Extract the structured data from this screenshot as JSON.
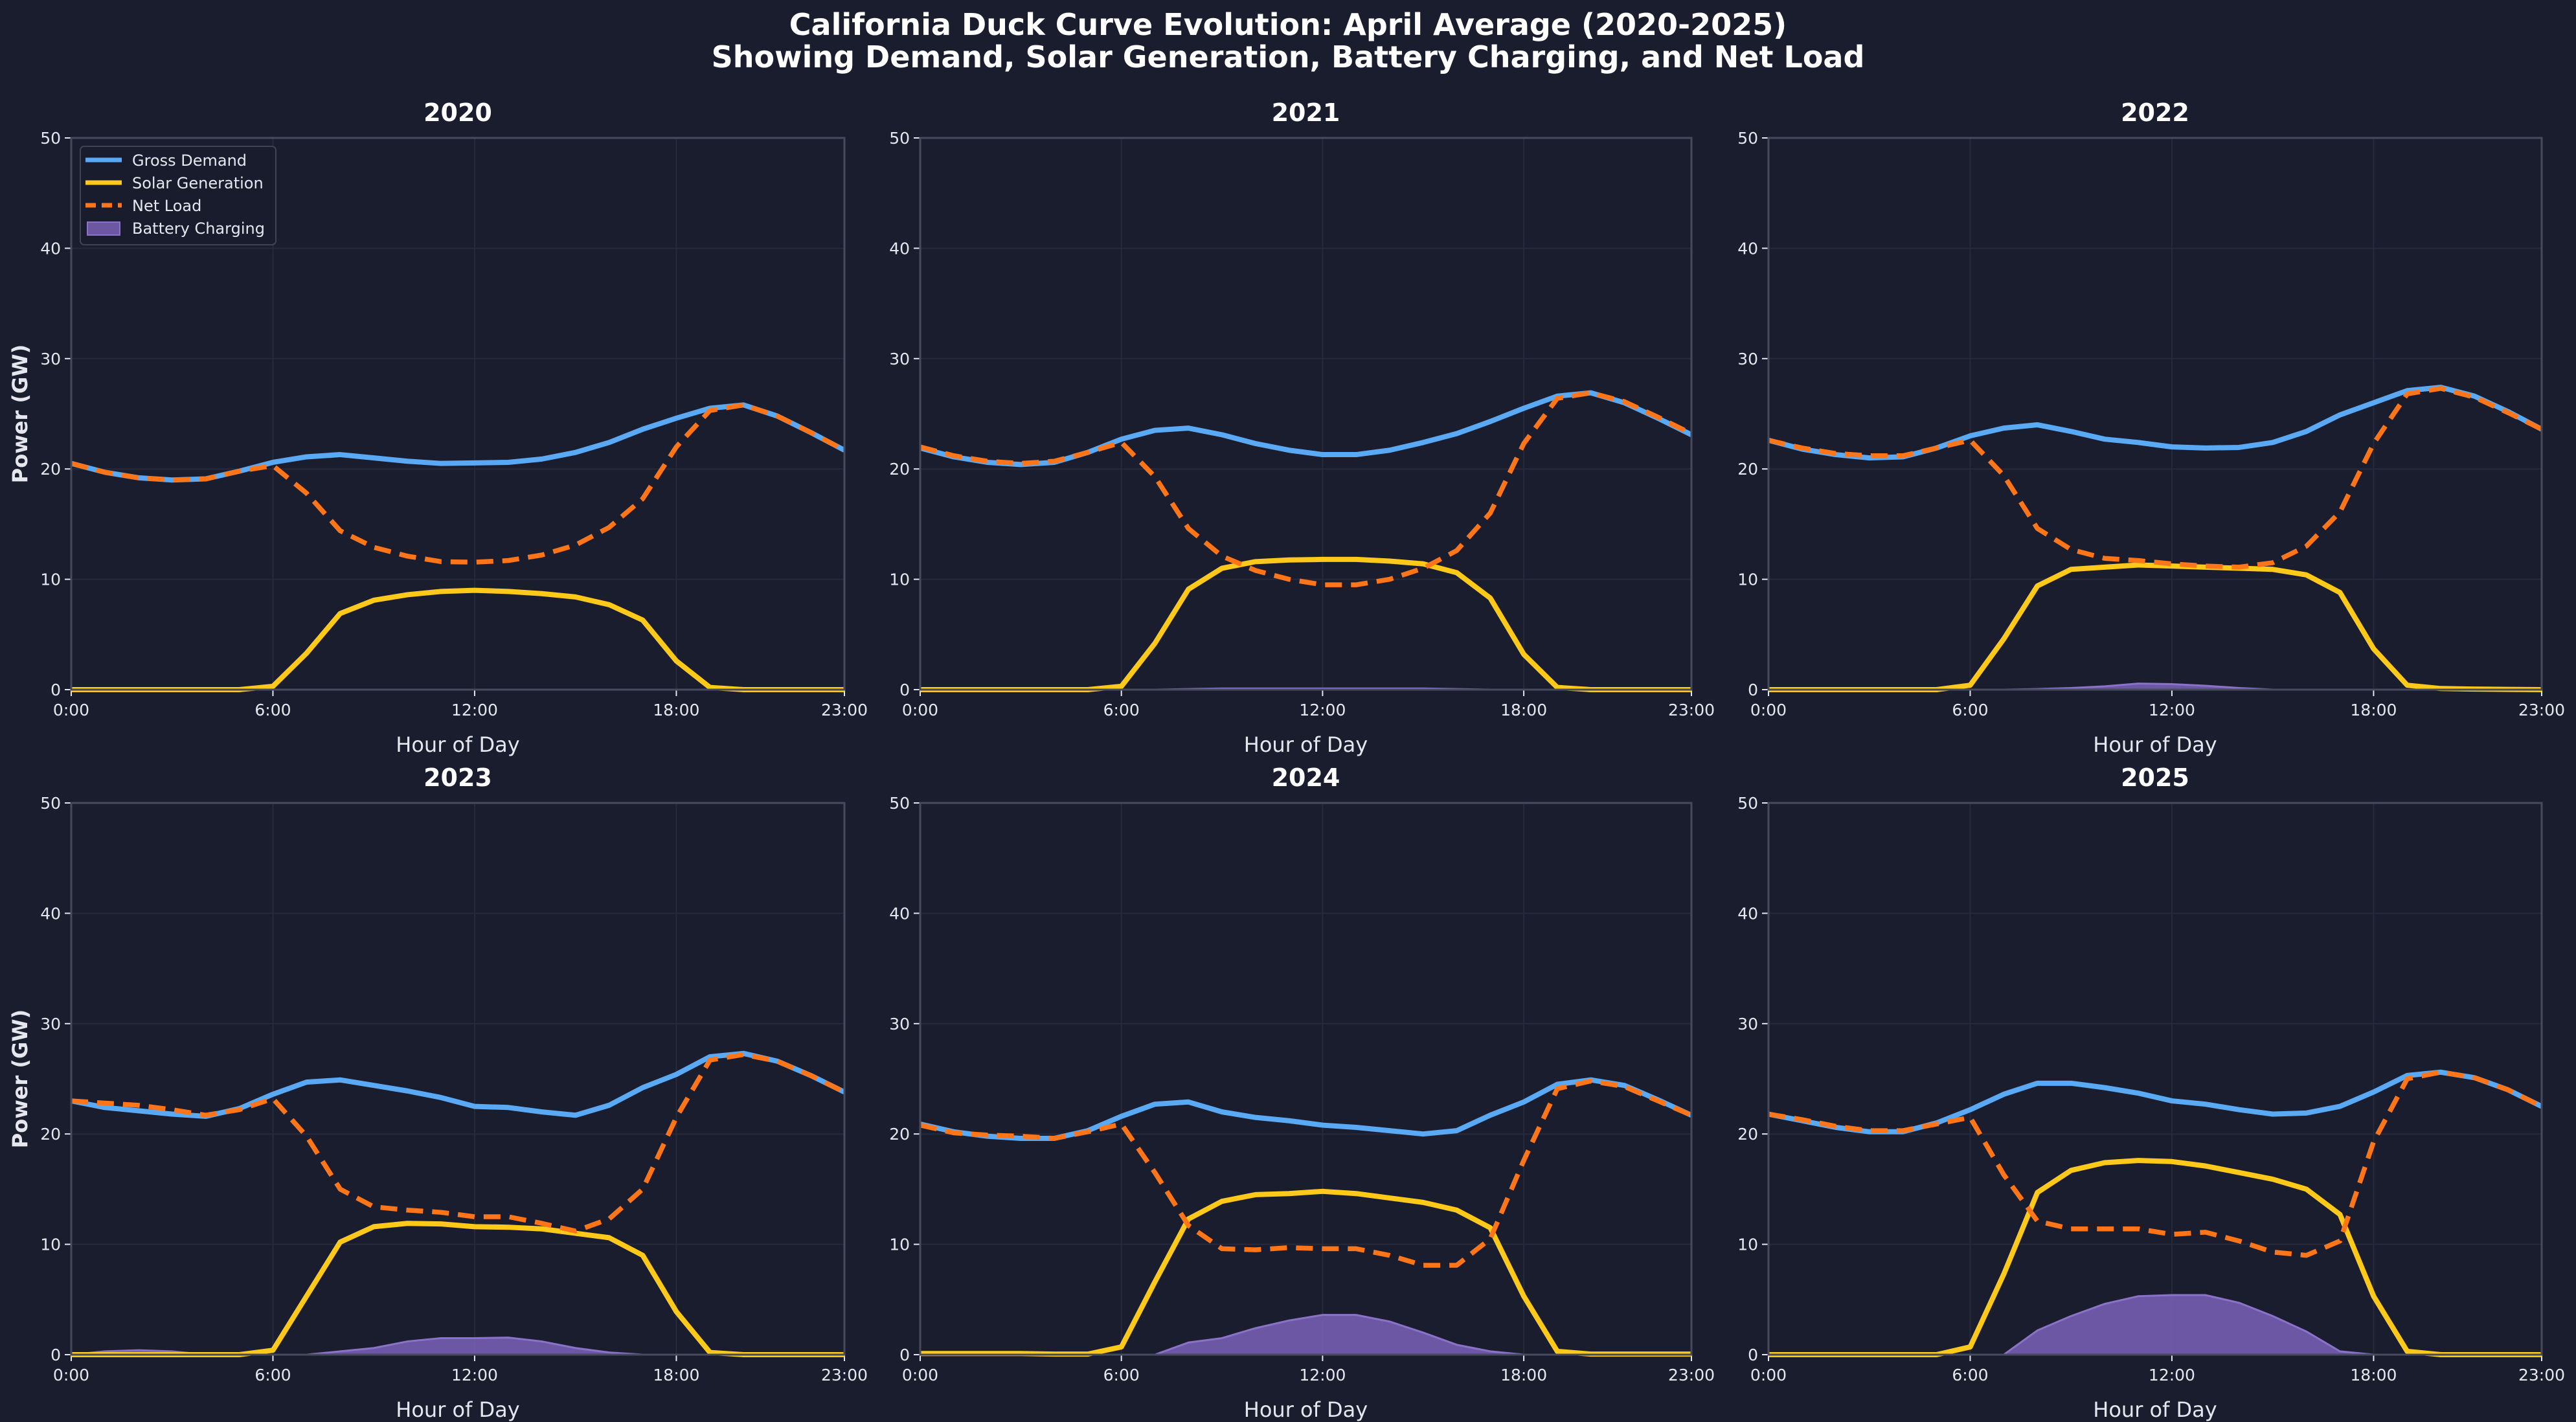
{
  "figure": {
    "title": "California Duck Curve Evolution: April Average (2020-2025)",
    "subtitle": "Showing Demand, Solar Generation, Battery Charging, and Net Load",
    "background": "#1a1d2e",
    "legend": {
      "placement": "upper-left of first panel",
      "entries": [
        "Gross Demand",
        "Solar Generation",
        "Net Load",
        "Battery Charging"
      ]
    },
    "colors": {
      "Gross Demand": "#5aa9f5",
      "Solar Generation": "#ffc91a",
      "Net Load": "#ff7518",
      "Battery Charging": "#7b62b8"
    }
  },
  "chart_data": [
    {
      "type": "line",
      "title": "2020",
      "xlabel": "Hour of Day",
      "ylabel": "Power (GW)",
      "xlim": [
        0,
        23
      ],
      "ylim": [
        0,
        50
      ],
      "grid": true,
      "xticks": [
        0,
        6,
        12,
        18,
        23
      ],
      "xtick_labels": [
        "0:00",
        "6:00",
        "12:00",
        "18:00",
        "23:00"
      ],
      "yticks": [
        0,
        10,
        20,
        30,
        40,
        50
      ],
      "x": [
        0,
        1,
        2,
        3,
        4,
        5,
        6,
        7,
        8,
        9,
        10,
        11,
        12,
        13,
        14,
        15,
        16,
        17,
        18,
        19,
        20,
        21,
        22,
        23
      ],
      "series": [
        {
          "name": "Gross Demand",
          "style": "solid",
          "values": [
            20.5,
            19.7,
            19.2,
            19.0,
            19.1,
            19.8,
            20.6,
            21.1,
            21.3,
            21.0,
            20.7,
            20.5,
            20.55,
            20.6,
            20.9,
            21.5,
            22.4,
            23.6,
            24.6,
            25.5,
            25.8,
            24.8,
            23.3,
            21.7
          ]
        },
        {
          "name": "Solar Generation",
          "style": "solid",
          "values": [
            0,
            0,
            0,
            0,
            0,
            0,
            0.3,
            3.3,
            6.9,
            8.1,
            8.6,
            8.9,
            9.0,
            8.9,
            8.7,
            8.4,
            7.7,
            6.3,
            2.6,
            0.2,
            0,
            0,
            0,
            0
          ]
        },
        {
          "name": "Net Load",
          "style": "dashed",
          "values": [
            20.5,
            19.7,
            19.2,
            19.0,
            19.1,
            19.8,
            20.3,
            17.8,
            14.4,
            12.9,
            12.1,
            11.6,
            11.55,
            11.7,
            12.2,
            13.1,
            14.7,
            17.3,
            22.0,
            25.3,
            25.8,
            24.8,
            23.3,
            21.7
          ]
        },
        {
          "name": "Battery Charging",
          "style": "area",
          "values": [
            0,
            0,
            0,
            0,
            0,
            0,
            0,
            0,
            0,
            0,
            0,
            0,
            0,
            0,
            0,
            0,
            0,
            0,
            0,
            0,
            0,
            0,
            0,
            0
          ]
        }
      ]
    },
    {
      "type": "line",
      "title": "2021",
      "xlabel": "Hour of Day",
      "ylabel": "",
      "xlim": [
        0,
        23
      ],
      "ylim": [
        0,
        50
      ],
      "grid": true,
      "xticks": [
        0,
        6,
        12,
        18,
        23
      ],
      "xtick_labels": [
        "0:00",
        "6:00",
        "12:00",
        "18:00",
        "23:00"
      ],
      "yticks": [
        0,
        10,
        20,
        30,
        40,
        50
      ],
      "x": [
        0,
        1,
        2,
        3,
        4,
        5,
        6,
        7,
        8,
        9,
        10,
        11,
        12,
        13,
        14,
        15,
        16,
        17,
        18,
        19,
        20,
        21,
        22,
        23
      ],
      "series": [
        {
          "name": "Gross Demand",
          "style": "solid",
          "values": [
            21.9,
            21.1,
            20.6,
            20.4,
            20.6,
            21.5,
            22.7,
            23.5,
            23.7,
            23.1,
            22.3,
            21.7,
            21.3,
            21.3,
            21.7,
            22.4,
            23.2,
            24.3,
            25.5,
            26.6,
            26.9,
            26.0,
            24.6,
            23.1
          ]
        },
        {
          "name": "Solar Generation",
          "style": "solid",
          "values": [
            0,
            0,
            0,
            0,
            0,
            0,
            0.3,
            4.2,
            9.1,
            11.0,
            11.6,
            11.75,
            11.8,
            11.8,
            11.65,
            11.4,
            10.6,
            8.3,
            3.2,
            0.2,
            0,
            0,
            0,
            0
          ]
        },
        {
          "name": "Net Load",
          "style": "dashed",
          "values": [
            22.0,
            21.2,
            20.7,
            20.5,
            20.7,
            21.5,
            22.4,
            19.3,
            14.6,
            12.1,
            10.8,
            10.0,
            9.5,
            9.5,
            10.0,
            11.0,
            12.6,
            16.0,
            22.3,
            26.4,
            26.9,
            26.1,
            24.7,
            23.2
          ]
        },
        {
          "name": "Battery Charging",
          "style": "area",
          "values": [
            0,
            0,
            0,
            0,
            0,
            0,
            0,
            0,
            0.05,
            0.1,
            0.1,
            0.1,
            0.1,
            0.1,
            0.1,
            0.1,
            0.05,
            0,
            0,
            0,
            0,
            0,
            0,
            0
          ]
        }
      ]
    },
    {
      "type": "line",
      "title": "2022",
      "xlabel": "Hour of Day",
      "ylabel": "",
      "xlim": [
        0,
        23
      ],
      "ylim": [
        0,
        50
      ],
      "grid": true,
      "xticks": [
        0,
        6,
        12,
        18,
        23
      ],
      "xtick_labels": [
        "0:00",
        "6:00",
        "12:00",
        "18:00",
        "23:00"
      ],
      "yticks": [
        0,
        10,
        20,
        30,
        40,
        50
      ],
      "x": [
        0,
        1,
        2,
        3,
        4,
        5,
        6,
        7,
        8,
        9,
        10,
        11,
        12,
        13,
        14,
        15,
        16,
        17,
        18,
        19,
        20,
        21,
        22,
        23
      ],
      "series": [
        {
          "name": "Gross Demand",
          "style": "solid",
          "values": [
            22.6,
            21.8,
            21.3,
            21.0,
            21.1,
            21.9,
            23.0,
            23.7,
            24.0,
            23.4,
            22.7,
            22.4,
            22.0,
            21.9,
            21.95,
            22.4,
            23.4,
            24.9,
            26.0,
            27.1,
            27.4,
            26.6,
            25.2,
            23.6
          ]
        },
        {
          "name": "Solar Generation",
          "style": "solid",
          "values": [
            0,
            0,
            0,
            0,
            0,
            0,
            0.4,
            4.6,
            9.4,
            10.9,
            11.1,
            11.3,
            11.2,
            11.1,
            11.0,
            10.9,
            10.4,
            8.8,
            3.7,
            0.4,
            0.1,
            0.05,
            0.02,
            0
          ]
        },
        {
          "name": "Net Load",
          "style": "dashed",
          "values": [
            22.6,
            21.9,
            21.4,
            21.2,
            21.2,
            21.9,
            22.6,
            19.4,
            14.6,
            12.7,
            11.9,
            11.7,
            11.4,
            11.2,
            11.1,
            11.5,
            13.0,
            16.1,
            22.3,
            26.8,
            27.3,
            26.5,
            25.1,
            23.6
          ]
        },
        {
          "name": "Battery Charging",
          "style": "area",
          "values": [
            0,
            0,
            0,
            0,
            0,
            0,
            0,
            0,
            0.05,
            0.15,
            0.3,
            0.55,
            0.5,
            0.35,
            0.15,
            0,
            0,
            0,
            0,
            0,
            0,
            0,
            0,
            0
          ]
        }
      ]
    },
    {
      "type": "line",
      "title": "2023",
      "xlabel": "Hour of Day",
      "ylabel": "Power (GW)",
      "xlim": [
        0,
        23
      ],
      "ylim": [
        0,
        50
      ],
      "grid": true,
      "xticks": [
        0,
        6,
        12,
        18,
        23
      ],
      "xtick_labels": [
        "0:00",
        "6:00",
        "12:00",
        "18:00",
        "23:00"
      ],
      "yticks": [
        0,
        10,
        20,
        30,
        40,
        50
      ],
      "x": [
        0,
        1,
        2,
        3,
        4,
        5,
        6,
        7,
        8,
        9,
        10,
        11,
        12,
        13,
        14,
        15,
        16,
        17,
        18,
        19,
        20,
        21,
        22,
        23
      ],
      "series": [
        {
          "name": "Gross Demand",
          "style": "solid",
          "values": [
            23.0,
            22.4,
            22.1,
            21.8,
            21.6,
            22.3,
            23.6,
            24.7,
            24.9,
            24.4,
            23.9,
            23.3,
            22.5,
            22.4,
            22.0,
            21.7,
            22.6,
            24.2,
            25.4,
            27.0,
            27.3,
            26.6,
            25.3,
            23.8
          ]
        },
        {
          "name": "Solar Generation",
          "style": "solid",
          "values": [
            0,
            0,
            0,
            0,
            0,
            0,
            0.4,
            5.3,
            10.2,
            11.6,
            11.9,
            11.85,
            11.6,
            11.55,
            11.4,
            11.0,
            10.6,
            9.0,
            3.9,
            0.2,
            0,
            0,
            0,
            0
          ]
        },
        {
          "name": "Net Load",
          "style": "dashed",
          "values": [
            23.0,
            22.8,
            22.6,
            22.2,
            21.7,
            22.2,
            23.2,
            19.8,
            15.0,
            13.4,
            13.1,
            12.9,
            12.5,
            12.5,
            11.9,
            11.2,
            12.3,
            15.0,
            21.5,
            26.7,
            27.2,
            26.6,
            25.3,
            23.8
          ]
        },
        {
          "name": "Battery Charging",
          "style": "area",
          "values": [
            0,
            0.3,
            0.4,
            0.3,
            0,
            0,
            0,
            0,
            0.3,
            0.6,
            1.2,
            1.5,
            1.5,
            1.55,
            1.2,
            0.6,
            0.2,
            0,
            0,
            0,
            0,
            0,
            0,
            0
          ]
        }
      ]
    },
    {
      "type": "line",
      "title": "2024",
      "xlabel": "Hour of Day",
      "ylabel": "",
      "xlim": [
        0,
        23
      ],
      "ylim": [
        0,
        50
      ],
      "grid": true,
      "xticks": [
        0,
        6,
        12,
        18,
        23
      ],
      "xtick_labels": [
        "0:00",
        "6:00",
        "12:00",
        "18:00",
        "23:00"
      ],
      "yticks": [
        0,
        10,
        20,
        30,
        40,
        50
      ],
      "x": [
        0,
        1,
        2,
        3,
        4,
        5,
        6,
        7,
        8,
        9,
        10,
        11,
        12,
        13,
        14,
        15,
        16,
        17,
        18,
        19,
        20,
        21,
        22,
        23
      ],
      "series": [
        {
          "name": "Gross Demand",
          "style": "solid",
          "values": [
            20.9,
            20.2,
            19.8,
            19.6,
            19.6,
            20.3,
            21.6,
            22.7,
            22.9,
            22.0,
            21.5,
            21.2,
            20.8,
            20.6,
            20.3,
            20.0,
            20.3,
            21.7,
            22.9,
            24.5,
            24.9,
            24.4,
            23.1,
            21.7
          ]
        },
        {
          "name": "Solar Generation",
          "style": "solid",
          "values": [
            0.1,
            0.1,
            0.1,
            0.1,
            0.05,
            0.05,
            0.7,
            6.6,
            12.3,
            13.9,
            14.5,
            14.6,
            14.8,
            14.6,
            14.2,
            13.8,
            13.1,
            11.5,
            5.3,
            0.3,
            0.05,
            0.05,
            0.05,
            0.05
          ]
        },
        {
          "name": "Net Load",
          "style": "dashed",
          "values": [
            20.8,
            20.1,
            19.9,
            19.8,
            19.6,
            20.2,
            20.9,
            16.5,
            11.7,
            9.6,
            9.5,
            9.7,
            9.6,
            9.6,
            9.0,
            8.1,
            8.1,
            10.5,
            17.6,
            24.1,
            24.8,
            24.3,
            23.0,
            21.7
          ]
        },
        {
          "name": "Battery Charging",
          "style": "area",
          "values": [
            0,
            0,
            0,
            0,
            0,
            0,
            0,
            0,
            1.1,
            1.5,
            2.4,
            3.1,
            3.6,
            3.6,
            3.0,
            2.0,
            0.9,
            0.3,
            0,
            0,
            0,
            0,
            0,
            0
          ]
        }
      ]
    },
    {
      "type": "line",
      "title": "2025",
      "xlabel": "Hour of Day",
      "ylabel": "",
      "xlim": [
        0,
        23
      ],
      "ylim": [
        0,
        50
      ],
      "grid": true,
      "xticks": [
        0,
        6,
        12,
        18,
        23
      ],
      "xtick_labels": [
        "0:00",
        "6:00",
        "12:00",
        "18:00",
        "23:00"
      ],
      "yticks": [
        0,
        10,
        20,
        30,
        40,
        50
      ],
      "x": [
        0,
        1,
        2,
        3,
        4,
        5,
        6,
        7,
        8,
        9,
        10,
        11,
        12,
        13,
        14,
        15,
        16,
        17,
        18,
        19,
        20,
        21,
        22,
        23
      ],
      "series": [
        {
          "name": "Gross Demand",
          "style": "solid",
          "values": [
            21.8,
            21.2,
            20.6,
            20.2,
            20.2,
            21.0,
            22.2,
            23.6,
            24.6,
            24.6,
            24.2,
            23.7,
            23.0,
            22.7,
            22.2,
            21.8,
            21.9,
            22.5,
            23.8,
            25.3,
            25.6,
            25.1,
            24.0,
            22.5
          ]
        },
        {
          "name": "Solar Generation",
          "style": "solid",
          "values": [
            0,
            0,
            0,
            0,
            0,
            0,
            0.7,
            7.3,
            14.7,
            16.7,
            17.4,
            17.6,
            17.5,
            17.1,
            16.5,
            15.9,
            15.0,
            12.7,
            5.3,
            0.3,
            0,
            0,
            0,
            0
          ]
        },
        {
          "name": "Net Load",
          "style": "dashed",
          "values": [
            21.8,
            21.3,
            20.7,
            20.3,
            20.3,
            20.9,
            21.5,
            16.3,
            12.1,
            11.4,
            11.4,
            11.4,
            10.9,
            11.1,
            10.3,
            9.3,
            9.0,
            10.3,
            19.3,
            25.0,
            25.6,
            25.1,
            24.0,
            22.5
          ]
        },
        {
          "name": "Battery Charging",
          "style": "area",
          "values": [
            0,
            0,
            0,
            0,
            0,
            0,
            0,
            0,
            2.2,
            3.5,
            4.6,
            5.3,
            5.4,
            5.4,
            4.7,
            3.5,
            2.1,
            0.3,
            0,
            0,
            0,
            0,
            0,
            0
          ]
        }
      ]
    }
  ]
}
